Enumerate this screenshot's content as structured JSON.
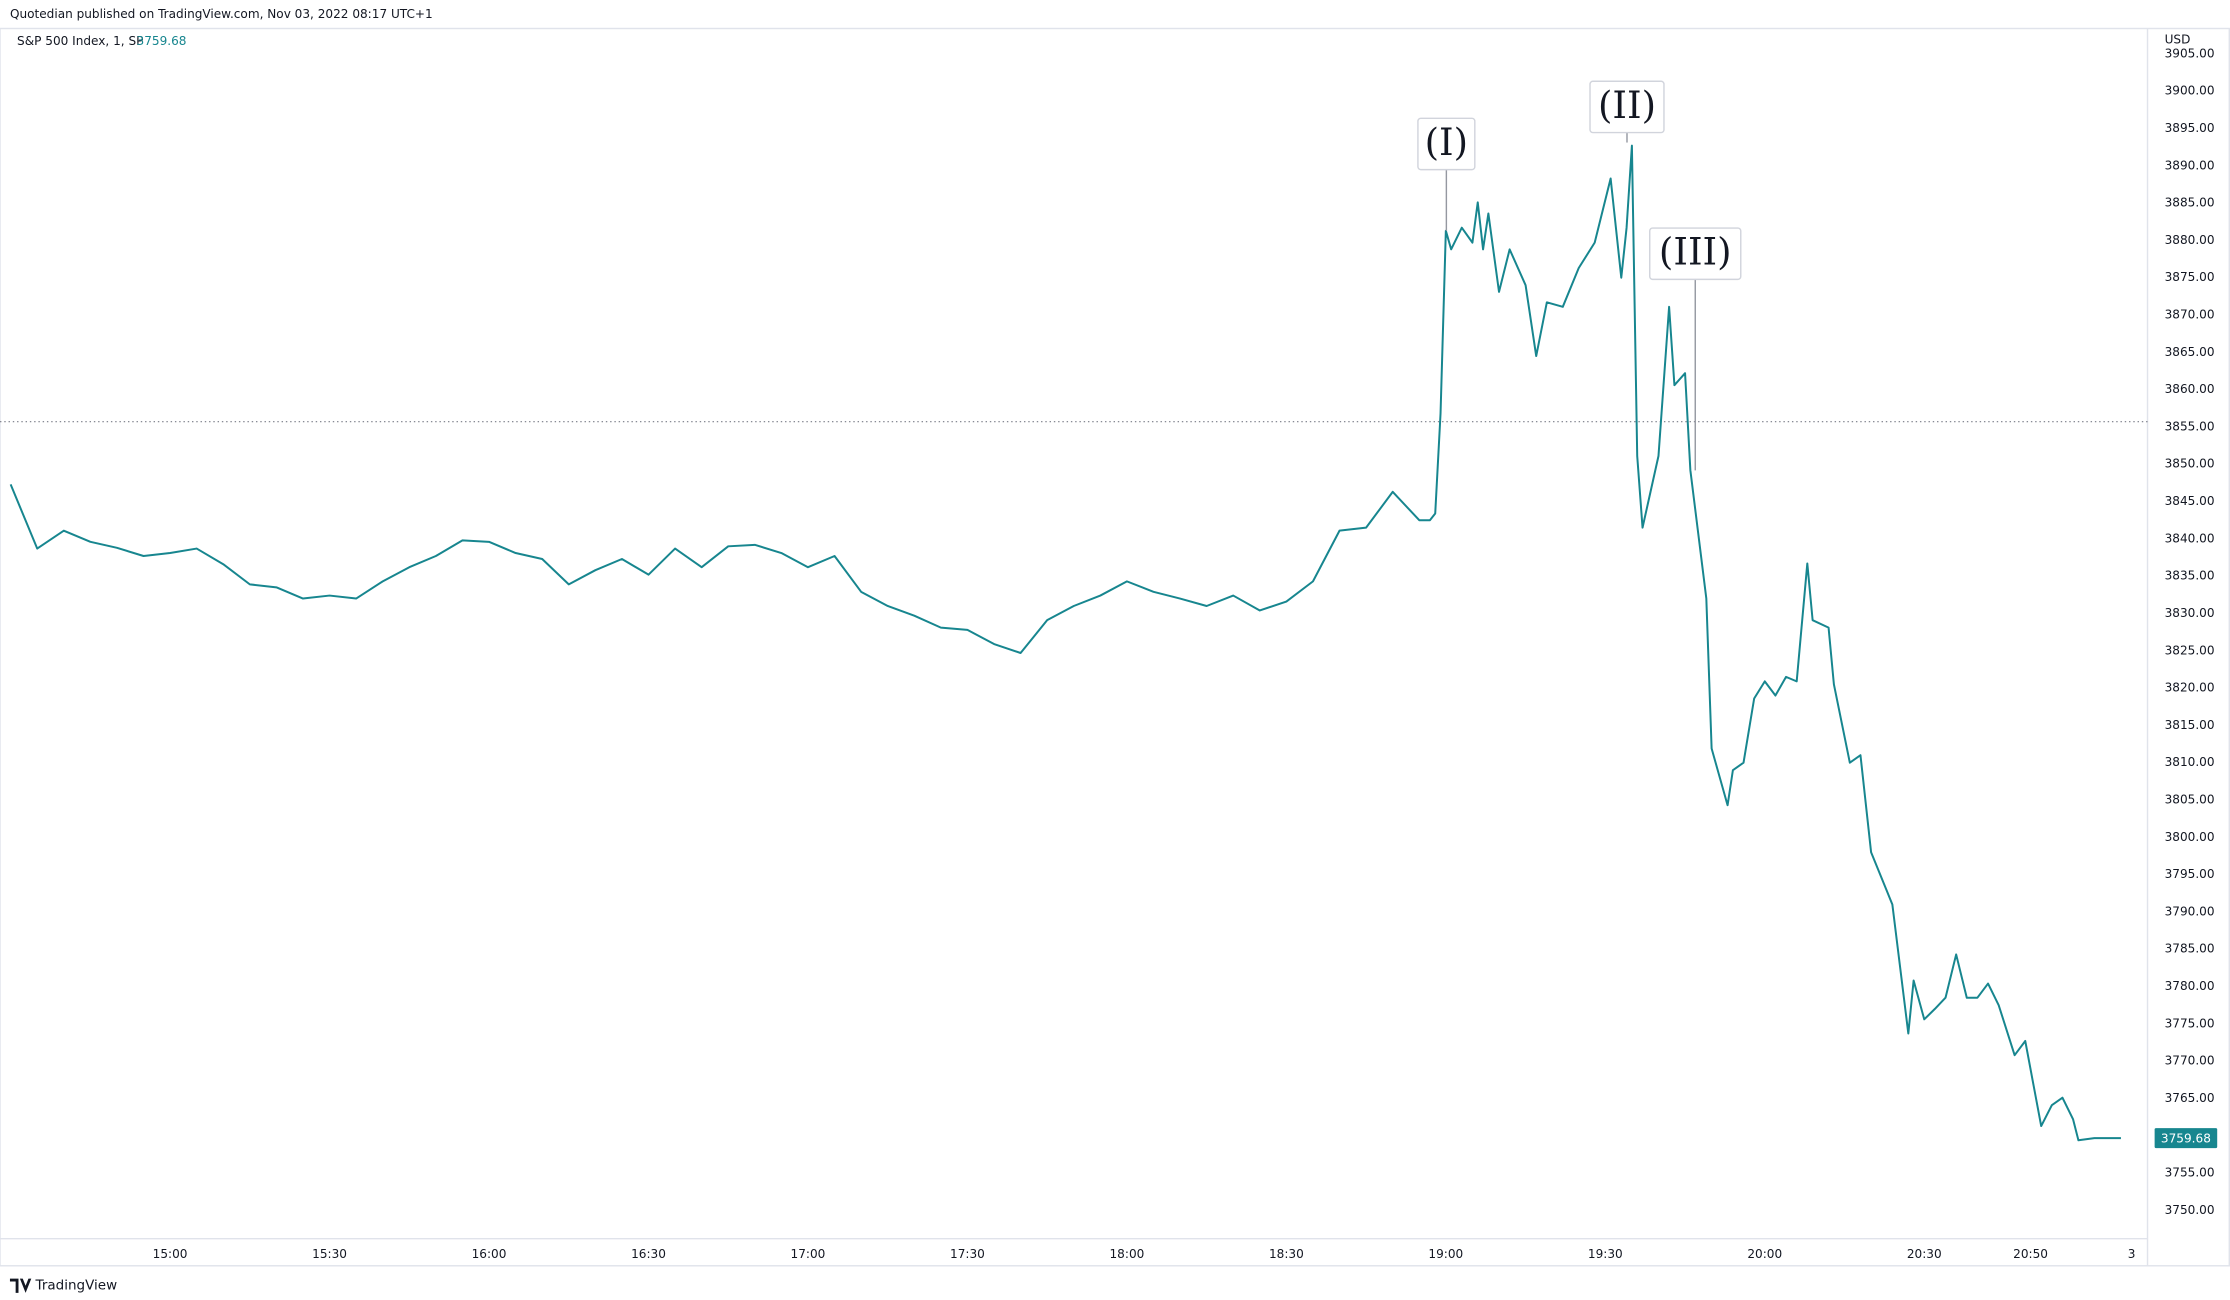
{
  "header": "Quotedian published on TradingView.com, Nov 03, 2022 08:17 UTC+1",
  "footer": "TradingView",
  "chart_data": {
    "type": "line",
    "symbol": "S&P 500 Index, 1, SP",
    "last_price": "3759.68",
    "currency": "USD",
    "color": "#17868f",
    "grid": false,
    "prev_close_line": 3855.7,
    "annotations": [
      "(I)",
      "(II)",
      "(III)"
    ],
    "x": [
      "14:30",
      "14:35",
      "14:40",
      "14:45",
      "14:50",
      "14:55",
      "15:00",
      "15:05",
      "15:10",
      "15:15",
      "15:20",
      "15:25",
      "15:30",
      "15:35",
      "15:40",
      "15:45",
      "15:50",
      "15:55",
      "16:00",
      "16:05",
      "16:10",
      "16:15",
      "16:20",
      "16:25",
      "16:30",
      "16:35",
      "16:40",
      "16:45",
      "16:50",
      "16:55",
      "17:00",
      "17:05",
      "17:10",
      "17:15",
      "17:20",
      "17:25",
      "17:30",
      "17:35",
      "17:40",
      "17:45",
      "17:50",
      "17:55",
      "18:00",
      "18:05",
      "18:10",
      "18:15",
      "18:20",
      "18:25",
      "18:30",
      "18:35",
      "18:40",
      "18:45",
      "18:50",
      "18:55",
      "18:57",
      "18:58",
      "18:59",
      "19:00",
      "19:01",
      "19:03",
      "19:05",
      "19:06",
      "19:07",
      "19:08",
      "19:10",
      "19:12",
      "19:15",
      "19:17",
      "19:19",
      "19:22",
      "19:25",
      "19:28",
      "19:31",
      "19:33",
      "19:34",
      "19:35",
      "19:36",
      "19:37",
      "19:40",
      "19:42",
      "19:43",
      "19:45",
      "19:46",
      "19:49",
      "19:50",
      "19:53",
      "19:54",
      "19:56",
      "19:58",
      "20:00",
      "20:02",
      "20:04",
      "20:06",
      "20:08",
      "20:09",
      "20:12",
      "20:13",
      "20:16",
      "20:18",
      "20:20",
      "20:24",
      "20:27",
      "20:28",
      "20:30",
      "20:32",
      "20:34",
      "20:36",
      "20:38",
      "20:40",
      "20:42",
      "20:44",
      "20:47",
      "20:49",
      "20:52",
      "20:54",
      "20:56",
      "20:58",
      "20:59",
      "21:02",
      "21:07"
    ],
    "values": [
      3847.3,
      3838.7,
      3841.1,
      3839.6,
      3838.8,
      3837.7,
      3838.1,
      3838.7,
      3836.6,
      3833.9,
      3833.5,
      3832.0,
      3832.4,
      3832.0,
      3834.3,
      3836.2,
      3837.7,
      3839.8,
      3839.6,
      3838.1,
      3837.3,
      3833.9,
      3835.8,
      3837.3,
      3835.2,
      3838.7,
      3836.2,
      3839.0,
      3839.2,
      3838.1,
      3836.2,
      3837.7,
      3832.9,
      3831.0,
      3829.7,
      3828.1,
      3827.8,
      3825.9,
      3824.7,
      3829.1,
      3831.0,
      3832.4,
      3834.3,
      3832.9,
      3832.0,
      3831.0,
      3832.4,
      3830.4,
      3831.6,
      3834.3,
      3841.1,
      3841.5,
      3846.3,
      3842.5,
      3842.5,
      3843.4,
      3856.8,
      3881.3,
      3878.8,
      3881.7,
      3879.7,
      3885.1,
      3878.8,
      3883.6,
      3873.1,
      3878.8,
      3874.0,
      3864.5,
      3871.7,
      3871.1,
      3876.3,
      3879.7,
      3888.3,
      3875.0,
      3881.7,
      3892.7,
      3851.1,
      3841.5,
      3851.1,
      3871.1,
      3860.6,
      3862.2,
      3849.2,
      3832.0,
      3811.9,
      3804.3,
      3809.0,
      3810.0,
      3818.6,
      3820.9,
      3819.0,
      3821.5,
      3820.9,
      3836.7,
      3829.1,
      3828.1,
      3820.5,
      3810.0,
      3811.0,
      3798.0,
      3791.0,
      3773.7,
      3780.8,
      3775.6,
      3777.0,
      3778.5,
      3784.3,
      3778.5,
      3778.5,
      3780.4,
      3777.5,
      3770.8,
      3772.7,
      3761.3,
      3764.1,
      3765.1,
      3762.2,
      3759.4,
      3759.68,
      3759.68
    ],
    "xlim": [
      "14:28",
      "21:12"
    ],
    "xticks": [
      "15:00",
      "15:30",
      "16:00",
      "16:30",
      "17:00",
      "17:30",
      "18:00",
      "18:30",
      "19:00",
      "19:30",
      "20:00",
      "20:30",
      "20:50",
      {
        "value": "21:09",
        "label": "3"
      }
    ],
    "ylim": [
      3746.2,
      3908.4
    ],
    "yticks": [
      {
        "value": 3750,
        "label": "3750.00"
      },
      {
        "value": 3755,
        "label": "3755.00"
      },
      {
        "value": 3760,
        "label": "3760.00"
      },
      {
        "value": 3765,
        "label": "3765.00"
      },
      {
        "value": 3770,
        "label": "3770.00"
      },
      {
        "value": 3775,
        "label": "3775.00"
      },
      {
        "value": 3780,
        "label": "3780.00"
      },
      {
        "value": 3785,
        "label": "3785.00"
      },
      {
        "value": 3790,
        "label": "3790.00"
      },
      {
        "value": 3795,
        "label": "3795.00"
      },
      {
        "value": 3800,
        "label": "3800.00"
      },
      {
        "value": 3805,
        "label": "3805.00"
      },
      {
        "value": 3810,
        "label": "3810.00"
      },
      {
        "value": 3815,
        "label": "3815.00"
      },
      {
        "value": 3820,
        "label": "3820.00"
      },
      {
        "value": 3825,
        "label": "3825.00"
      },
      {
        "value": 3830,
        "label": "3830.00"
      },
      {
        "value": 3835,
        "label": "3835.00"
      },
      {
        "value": 3840,
        "label": "3840.00"
      },
      {
        "value": 3845,
        "label": "3845.00"
      },
      {
        "value": 3850,
        "label": "3850.00"
      },
      {
        "value": 3855,
        "label": "3855.00"
      },
      {
        "value": 3860,
        "label": "3860.00"
      },
      {
        "value": 3865,
        "label": "3865.00"
      },
      {
        "value": 3870,
        "label": "3870.00"
      },
      {
        "value": 3875,
        "label": "3875.00"
      },
      {
        "value": 3880,
        "label": "3880.00"
      },
      {
        "value": 3885,
        "label": "3885.00"
      },
      {
        "value": 3890,
        "label": "3890.00"
      },
      {
        "value": 3895,
        "label": "3895.00"
      },
      {
        "value": 3900,
        "label": "3900.00"
      },
      {
        "value": 3905,
        "label": "3905.00"
      }
    ]
  }
}
